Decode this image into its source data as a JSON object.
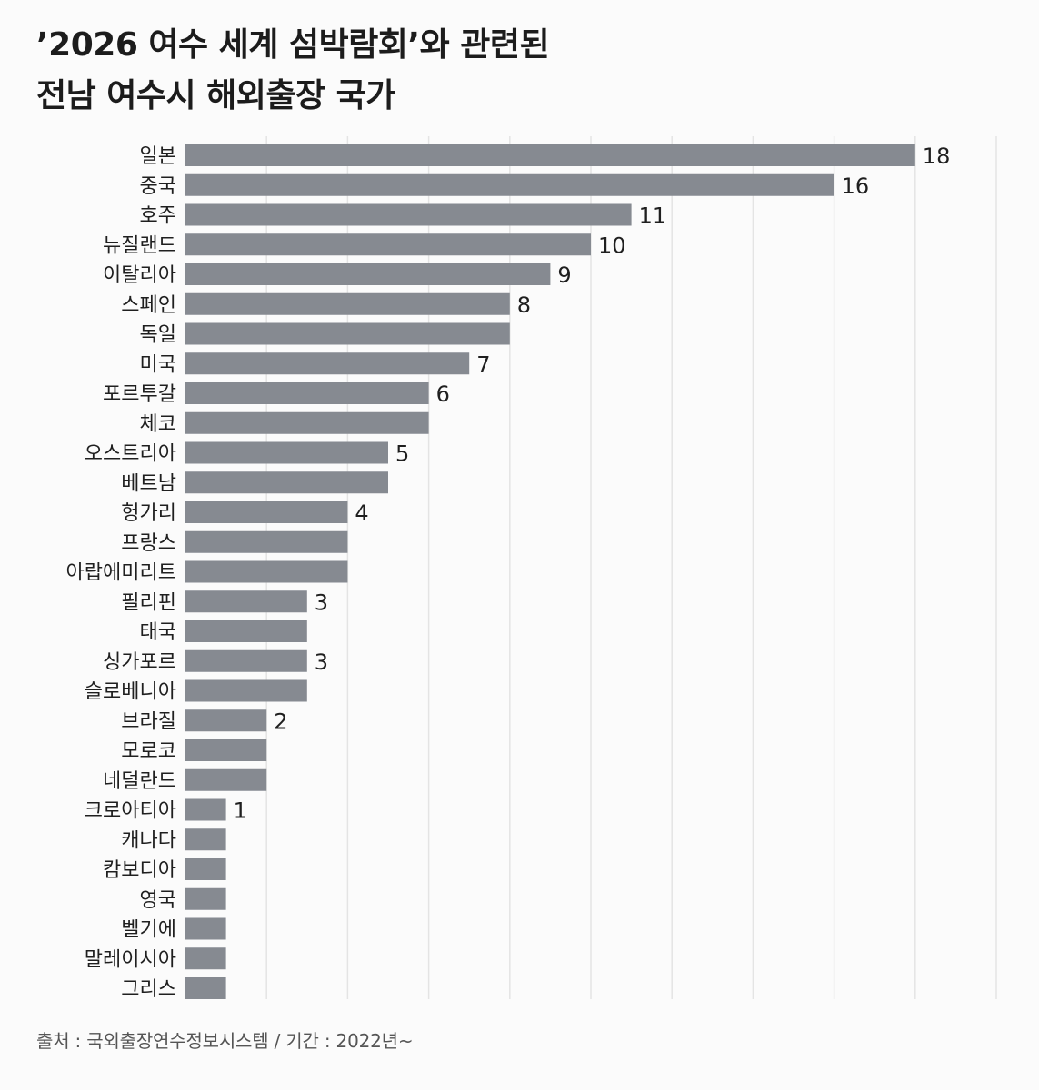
{
  "header": {
    "title_line1": "’2026 여수 세계 섬박람회’와 관련된",
    "title_line2": "전남 여수시 해외출장 국가"
  },
  "footer": {
    "source": "출처 : 국외출장연수정보시스템 / 기간 : 2022년~"
  },
  "colors": {
    "bar": "#868a91",
    "grid": "#e4e4e4",
    "text": "#1f1f1f"
  },
  "chart_data": {
    "type": "bar",
    "orientation": "horizontal",
    "title": "’2026 여수 세계 섬박람회’와 관련된 전남 여수시 해외출장 국가",
    "xlim": [
      0,
      20
    ],
    "grid": true,
    "categories": [
      "일본",
      "중국",
      "호주",
      "뉴질랜드",
      "이탈리아",
      "스페인",
      "독일",
      "미국",
      "포르투갈",
      "체코",
      "오스트리아",
      "베트남",
      "헝가리",
      "프랑스",
      "아랍에미리트",
      "필리핀",
      "태국",
      "싱가포르",
      "슬로베니아",
      "브라질",
      "모로코",
      "네덜란드",
      "크로아티아",
      "캐나다",
      "캄보디아",
      "영국",
      "벨기에",
      "말레이시아",
      "그리스"
    ],
    "values": [
      18,
      16,
      11,
      10,
      9,
      8,
      8,
      7,
      6,
      6,
      5,
      5,
      4,
      4,
      4,
      3,
      3,
      3,
      3,
      2,
      2,
      2,
      1,
      1,
      1,
      1,
      1,
      1,
      1
    ],
    "value_labels": [
      "18",
      "16",
      "11",
      "10",
      "9",
      "8",
      "",
      "7",
      "6",
      "",
      "5",
      "",
      "4",
      "",
      "",
      "3",
      "",
      "3",
      "",
      "2",
      "",
      "",
      "1",
      "",
      "",
      "",
      "",
      "",
      ""
    ]
  }
}
